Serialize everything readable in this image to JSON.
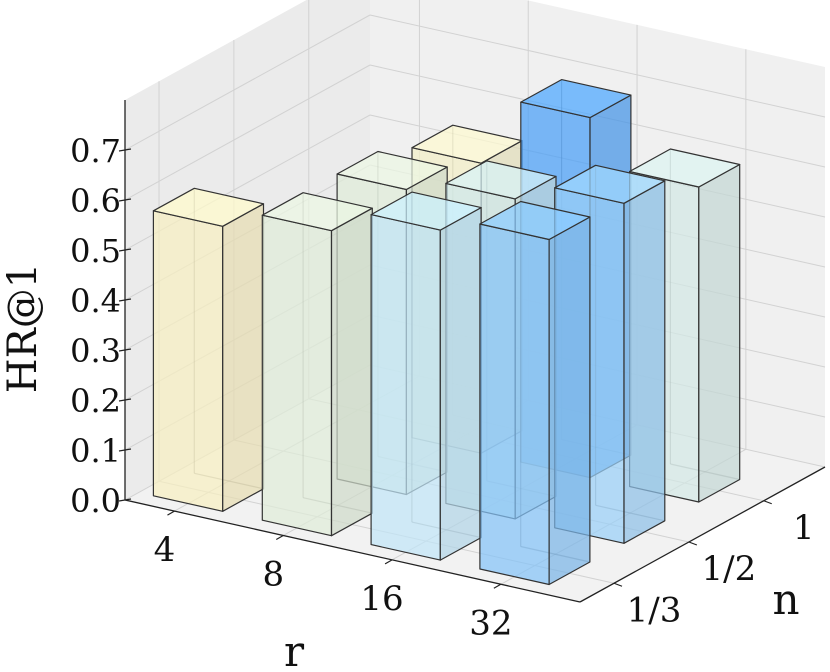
{
  "chart_data": {
    "type": "bar3d",
    "zlabel": "HR@1",
    "xlabel": "r",
    "ylabel": "n",
    "x_categories": [
      "4",
      "8",
      "16",
      "32"
    ],
    "y_categories": [
      "1/3",
      "1/2",
      "1"
    ],
    "z_ticks": [
      "0.0",
      "0.1",
      "0.2",
      "0.3",
      "0.4",
      "0.5",
      "0.6",
      "0.7"
    ],
    "zlim": [
      0,
      0.8
    ],
    "grid": true,
    "bars": [
      {
        "r": "4",
        "n": "1/3",
        "value": 0.57
      },
      {
        "r": "8",
        "n": "1/3",
        "value": 0.61
      },
      {
        "r": "16",
        "n": "1/3",
        "value": 0.66
      },
      {
        "r": "32",
        "n": "1/3",
        "value": 0.69
      },
      {
        "r": "8",
        "n": "1/2",
        "value": 0.61
      },
      {
        "r": "16",
        "n": "1/2",
        "value": 0.64
      },
      {
        "r": "32",
        "n": "1/2",
        "value": 0.68
      },
      {
        "r": "8",
        "n": "1",
        "value": 0.58
      },
      {
        "r": "16",
        "n": "1",
        "value": 0.72
      },
      {
        "r": "32",
        "n": "1",
        "value": 0.63
      }
    ],
    "colors": {
      "low": "#fff6c6",
      "mid": "#c6ecff",
      "high": "#4aa3ff",
      "edge": "#333333"
    }
  }
}
